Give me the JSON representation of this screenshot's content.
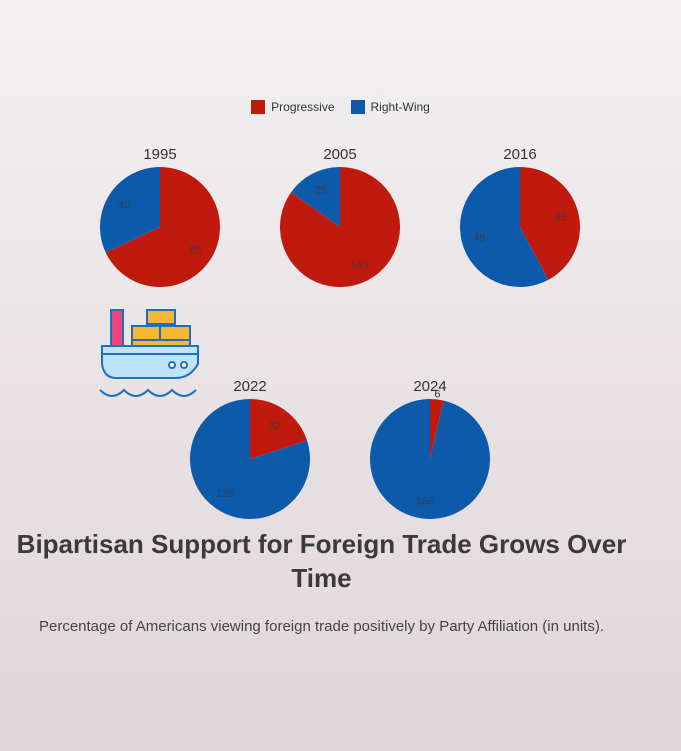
{
  "chart_data": {
    "type": "pie",
    "title": "Bipartisan Support for Foreign Trade Grows Over Time",
    "subtitle": "Percentage of Americans viewing foreign trade positively by Party Affiliation (in units).",
    "legend": {
      "placement": "top-center"
    },
    "series": [
      {
        "name": "Progressive",
        "color": "#c0190e"
      },
      {
        "name": "Right-Wing",
        "color": "#0d5aab"
      }
    ],
    "pies": [
      {
        "label": "1995",
        "values": [
          85,
          40
        ]
      },
      {
        "label": "2005",
        "values": [
          140,
          25
        ]
      },
      {
        "label": "2016",
        "values": [
          35,
          48
        ]
      },
      {
        "label": "2022",
        "values": [
          32,
          128
        ]
      },
      {
        "label": "2024",
        "values": [
          6,
          160
        ]
      }
    ]
  },
  "icons": {
    "decoration": "cargo-ship-icon"
  }
}
